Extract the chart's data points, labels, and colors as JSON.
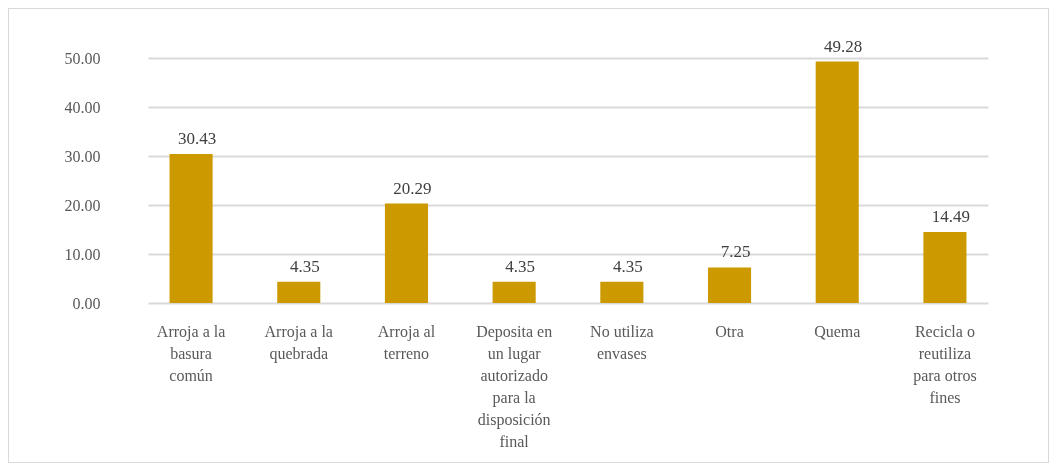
{
  "chart_data": {
    "type": "bar",
    "categories": [
      "Arroja a la basura común",
      "Arroja a la quebrada",
      "Arroja al terreno",
      "Deposita en un lugar autorizado para la disposición final",
      "No utiliza envases",
      "Otra",
      "Quema",
      "Recicla o reutiliza para otros fines"
    ],
    "values": [
      30.43,
      4.35,
      20.29,
      4.35,
      4.35,
      7.25,
      49.28,
      14.49
    ],
    "color": "#cc9900",
    "ylim": [
      0,
      50
    ],
    "yticks": [
      {
        "value": 0,
        "label": "0.00"
      },
      {
        "value": 10,
        "label": "10.00"
      },
      {
        "value": 20,
        "label": "20.00"
      },
      {
        "value": 30,
        "label": "30.00"
      },
      {
        "value": 40,
        "label": "40.00"
      },
      {
        "value": 50,
        "label": "50.00"
      }
    ],
    "grid": true,
    "data_labels": true
  }
}
